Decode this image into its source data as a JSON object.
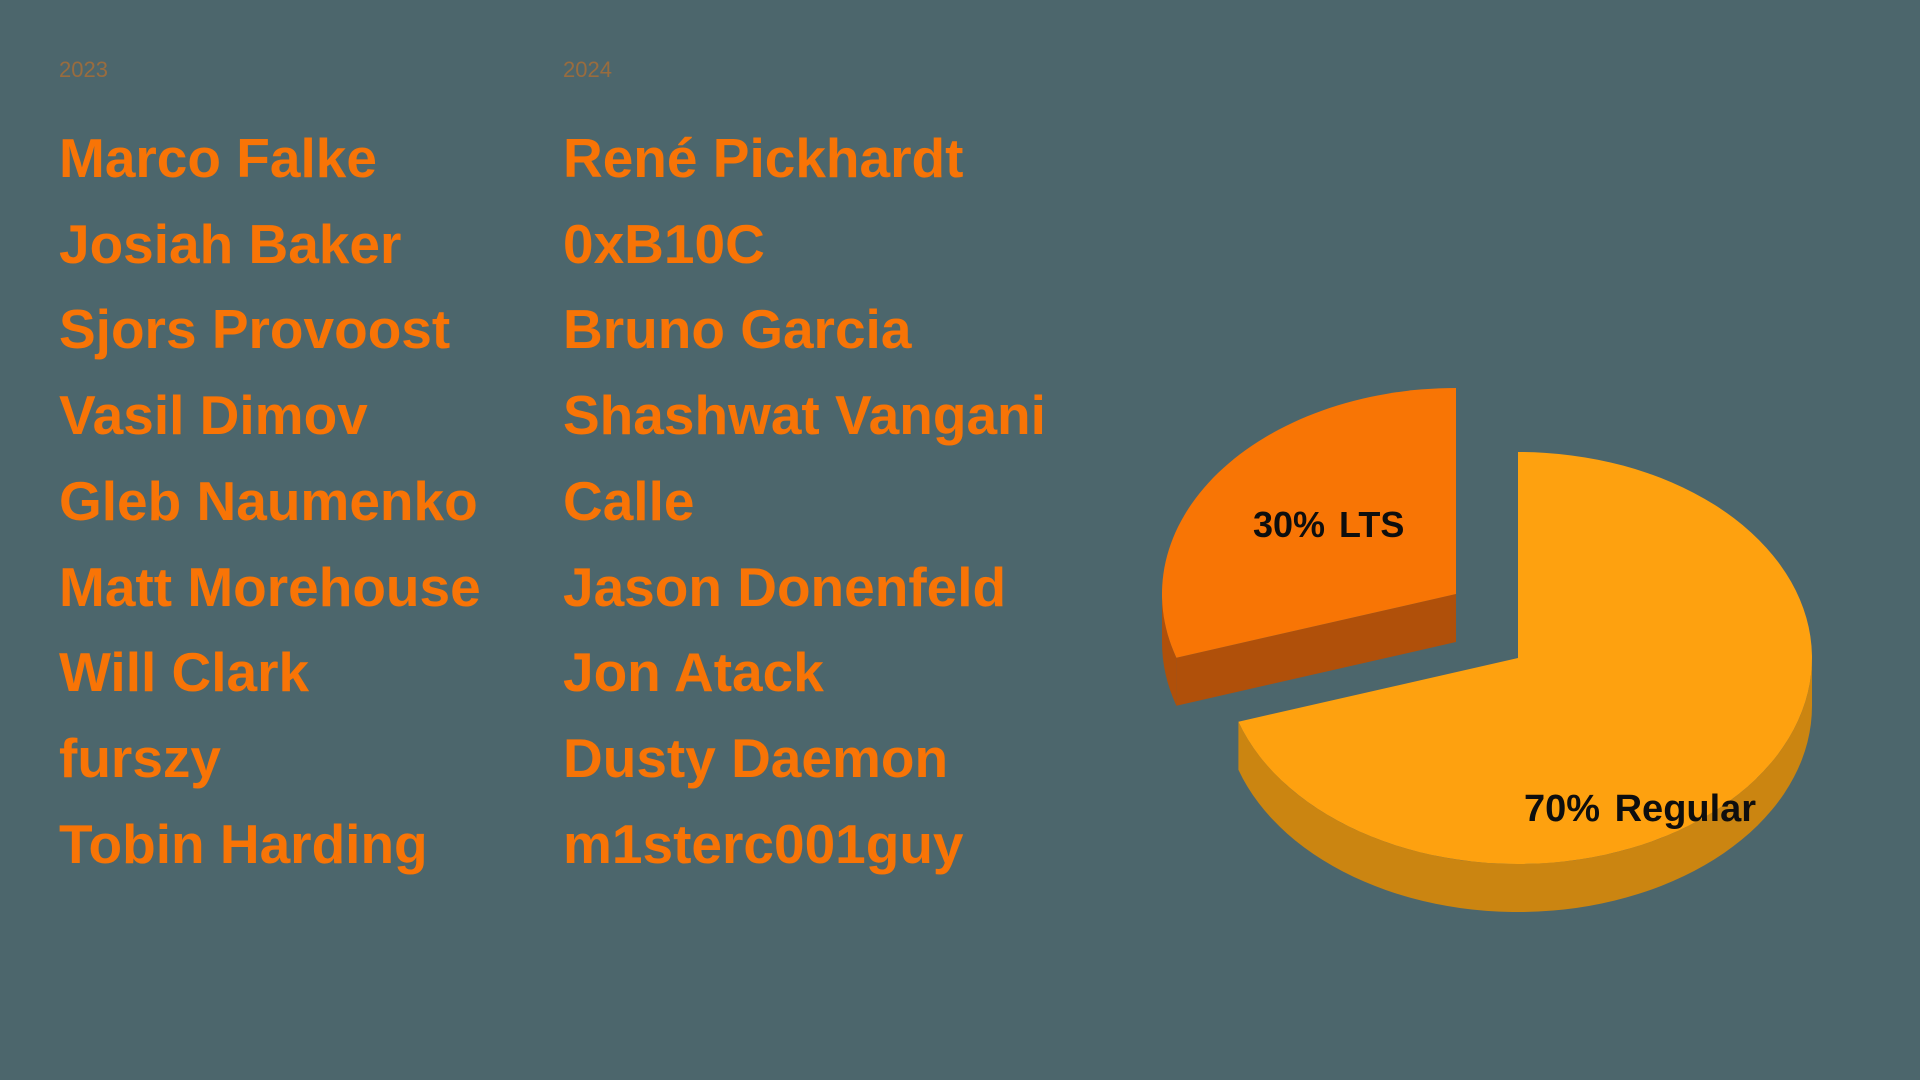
{
  "slide": {
    "columns": [
      {
        "year": "2023",
        "names": [
          "Marco Falke",
          "Josiah Baker",
          "Sjors Provoost",
          "Vasil Dimov",
          "Gleb Naumenko",
          "Matt Morehouse",
          "Will Clark",
          "furszy",
          "Tobin Harding"
        ]
      },
      {
        "year": "2024",
        "names": [
          "René Pickhardt",
          "0xB10C",
          "Bruno Garcia",
          "Shashwat Vangani",
          "Calle",
          "Jason Donenfeld",
          "Jon Atack",
          "Dusty Daemon",
          "m1sterc001guy"
        ]
      }
    ]
  },
  "colors": {
    "background": "#4C666C",
    "accent": "#F87406",
    "pie_label_text": "#0E0E0E"
  },
  "chart_data": {
    "type": "pie",
    "style": "3d-exploded",
    "title": "",
    "unit": "%",
    "start_angle_deg": -90,
    "direction": "clockwise",
    "legend": "none",
    "series": [
      {
        "name": "Regular",
        "value": 70,
        "label": "70% Regular",
        "color": "#FEA10F",
        "side_color": "#CB8511",
        "exploded": false
      },
      {
        "name": "LTS",
        "value": 30,
        "label": "30% LTS",
        "color": "#F87505",
        "side_color": "#B0500A",
        "exploded": true
      }
    ]
  }
}
